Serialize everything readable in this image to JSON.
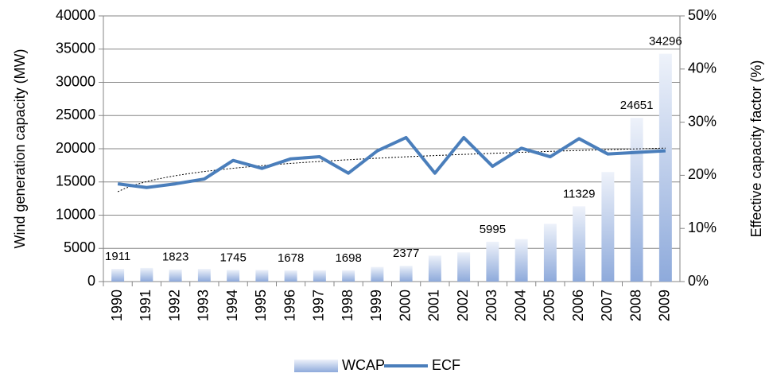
{
  "chart_data": {
    "type": "bar-line",
    "y_label": "Wind generation capacity (MW)",
    "y2_label": "Effective capacity factor (%)",
    "categories": [
      "1990",
      "1991",
      "1992",
      "1993",
      "1994",
      "1995",
      "1996",
      "1997",
      "1998",
      "1999",
      "2000",
      "2001",
      "2002",
      "2003",
      "2004",
      "2005",
      "2006",
      "2007",
      "2008",
      "2009"
    ],
    "series": [
      {
        "name": "WCAP",
        "type": "bar",
        "color": "#8eaadb",
        "values": [
          1911,
          2050,
          1823,
          1900,
          1745,
          1750,
          1678,
          1700,
          1698,
          2200,
          2377,
          3900,
          4400,
          5995,
          6400,
          8700,
          11329,
          16500,
          24651,
          34296
        ],
        "value_labels": [
          "1911",
          null,
          "1823",
          null,
          "1745",
          null,
          "1678",
          null,
          "1698",
          null,
          "2377",
          null,
          null,
          "5995",
          null,
          null,
          "11329",
          null,
          "24651",
          "34296"
        ]
      },
      {
        "name": "ECF",
        "type": "line",
        "axis": "y2",
        "color": "#4a7ebb",
        "trendline": "logarithmic",
        "values": [
          18.4,
          17.7,
          18.4,
          19.3,
          22.8,
          21.3,
          23.1,
          23.5,
          20.4,
          24.6,
          27.1,
          20.4,
          27.1,
          21.7,
          25.1,
          23.5,
          26.9,
          24.0,
          24.3,
          24.6
        ]
      }
    ],
    "ylim": [
      0,
      40000
    ],
    "yticks": [
      0,
      5000,
      10000,
      15000,
      20000,
      25000,
      30000,
      35000,
      40000
    ],
    "y2lim": [
      0,
      50
    ],
    "y2ticks": [
      {
        "value": 0,
        "label": "0%"
      },
      {
        "value": 10,
        "label": "10%"
      },
      {
        "value": 20,
        "label": "20%"
      },
      {
        "value": 30,
        "label": "30%"
      },
      {
        "value": 40,
        "label": "40%"
      },
      {
        "value": 50,
        "label": "50%"
      }
    ],
    "grid": true,
    "legend": "bottom"
  }
}
